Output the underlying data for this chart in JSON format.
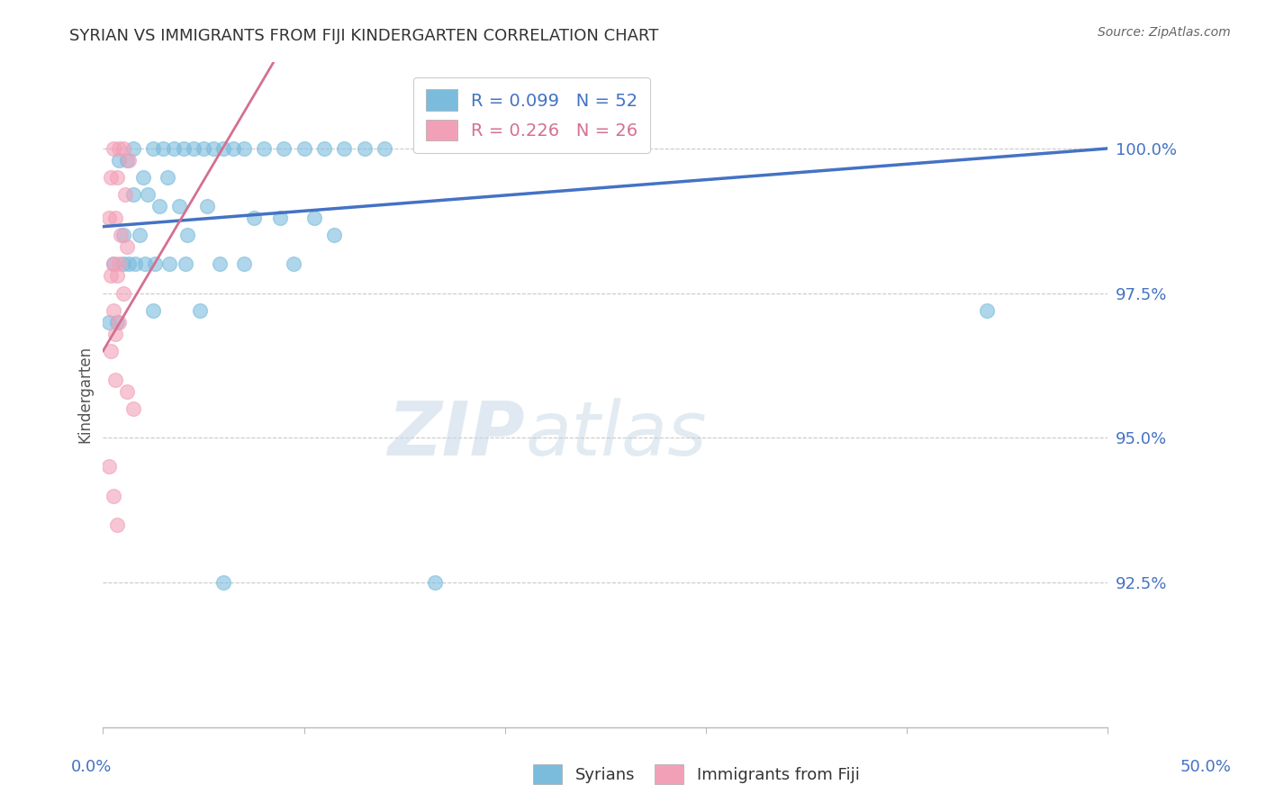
{
  "title": "SYRIAN VS IMMIGRANTS FROM FIJI KINDERGARTEN CORRELATION CHART",
  "source": "Source: ZipAtlas.com",
  "ylabel": "Kindergarten",
  "xlim": [
    0.0,
    50.0
  ],
  "ylim": [
    90.0,
    101.5
  ],
  "yticks": [
    100.0,
    97.5,
    95.0,
    92.5
  ],
  "ytick_labels": [
    "100.0%",
    "97.5%",
    "95.0%",
    "92.5%"
  ],
  "watermark_zip": "ZIP",
  "watermark_atlas": "atlas",
  "legend_blue_R": "R = 0.099",
  "legend_blue_N": "N = 52",
  "legend_pink_R": "R = 0.226",
  "legend_pink_N": "N = 26",
  "legend_label_blue": "Syrians",
  "legend_label_pink": "Immigrants from Fiji",
  "blue_color": "#7bbcdc",
  "pink_color": "#f2a0b8",
  "blue_line_color": "#4472c4",
  "pink_line_color": "#d47090",
  "title_color": "#333333",
  "source_color": "#666666",
  "tick_color_blue": "#4472c4",
  "blue_x": [
    1.5,
    2.5,
    3.0,
    3.5,
    4.0,
    4.5,
    5.0,
    5.5,
    6.0,
    7.0,
    8.0,
    9.0,
    10.0,
    11.0,
    12.0,
    13.0,
    14.0,
    0.8,
    1.2,
    2.0,
    3.2,
    1.5,
    2.2,
    2.8,
    3.8,
    5.2,
    6.5,
    7.5,
    8.8,
    10.5,
    1.0,
    1.8,
    4.2,
    0.5,
    1.0,
    1.3,
    1.6,
    2.1,
    2.6,
    3.3,
    4.1,
    5.8,
    7.0,
    9.5,
    11.5,
    44.0,
    0.3,
    0.7,
    2.5,
    4.8,
    16.5,
    6.0
  ],
  "blue_y": [
    100.0,
    100.0,
    100.0,
    100.0,
    100.0,
    100.0,
    100.0,
    100.0,
    100.0,
    100.0,
    100.0,
    100.0,
    100.0,
    100.0,
    100.0,
    100.0,
    100.0,
    99.8,
    99.8,
    99.5,
    99.5,
    99.2,
    99.2,
    99.0,
    99.0,
    99.0,
    100.0,
    98.8,
    98.8,
    98.8,
    98.5,
    98.5,
    98.5,
    98.0,
    98.0,
    98.0,
    98.0,
    98.0,
    98.0,
    98.0,
    98.0,
    98.0,
    98.0,
    98.0,
    98.5,
    97.2,
    97.0,
    97.0,
    97.2,
    97.2,
    92.5,
    92.5
  ],
  "pink_x": [
    0.5,
    0.8,
    1.0,
    1.3,
    0.4,
    0.7,
    1.1,
    0.3,
    0.6,
    0.9,
    1.2,
    0.5,
    0.8,
    0.4,
    0.7,
    1.0,
    0.5,
    0.8,
    0.6,
    0.4,
    0.6,
    1.2,
    1.5,
    0.3,
    0.5,
    0.7
  ],
  "pink_y": [
    100.0,
    100.0,
    100.0,
    99.8,
    99.5,
    99.5,
    99.2,
    98.8,
    98.8,
    98.5,
    98.3,
    98.0,
    98.0,
    97.8,
    97.8,
    97.5,
    97.2,
    97.0,
    96.8,
    96.5,
    96.0,
    95.8,
    95.5,
    94.5,
    94.0,
    93.5
  ],
  "blue_trendline_x": [
    0.0,
    50.0
  ],
  "blue_trendline_y": [
    98.65,
    100.0
  ],
  "pink_trendline_x": [
    0.0,
    8.5
  ],
  "pink_trendline_y": [
    96.5,
    101.5
  ],
  "xtick_positions": [
    0,
    10,
    20,
    30,
    40,
    50
  ]
}
